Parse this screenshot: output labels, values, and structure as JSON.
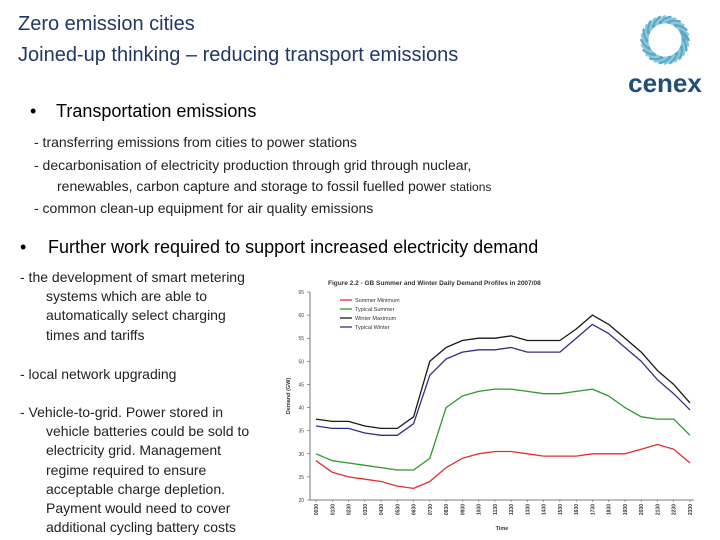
{
  "slide": {
    "title_line1": "Zero emission cities",
    "title_line2": "Joined-up thinking – reducing transport emissions",
    "logo_text": "cenex",
    "bullet1": {
      "label": "Transportation emissions",
      "sub1": "- transferring emissions from cities to power stations",
      "sub2a": "- decarbonisation of electricity production through grid through nuclear,",
      "sub2b": "renewables, carbon capture and storage to fossil fuelled power",
      "sub2c": "stations",
      "sub3": "- common clean-up equipment for air quality emissions"
    },
    "bullet2": {
      "label": "Further work required to support increased electricity demand",
      "p1": [
        "- the development of smart metering",
        "systems which are able to",
        "automatically select charging",
        "times and tariffs"
      ],
      "p2": [
        "- local network upgrading"
      ],
      "p3": [
        "- Vehicle-to-grid. Power stored in",
        "vehicle batteries could be sold to",
        "electricity grid.  Management",
        "regime required to ensure",
        "acceptable charge depletion.",
        "Payment would need to cover",
        "additional cycling battery costs"
      ]
    }
  },
  "chart_data": {
    "type": "line",
    "title": "Figure 2.2 - GB Summer and Winter Daily Demand Profiles in 2007/08",
    "xlabel": "Time",
    "ylabel": "Demand (GW)",
    "ylim": [
      20,
      65
    ],
    "yticks": [
      20,
      25,
      30,
      35,
      40,
      45,
      50,
      55,
      60,
      65
    ],
    "legend_position": "top-left",
    "x": [
      "00:30",
      "01:30",
      "02:30",
      "03:30",
      "04:30",
      "05:30",
      "06:30",
      "07:30",
      "08:30",
      "09:30",
      "10:30",
      "11:30",
      "12:30",
      "13:30",
      "14:30",
      "15:30",
      "16:30",
      "17:30",
      "18:30",
      "19:30",
      "20:30",
      "21:30",
      "22:30",
      "23:30"
    ],
    "xticks": [
      "0030",
      "0130",
      "0230",
      "0330",
      "0430",
      "0530",
      "0630",
      "0730",
      "0830",
      "0930",
      "1030",
      "1130",
      "1230",
      "1330",
      "1430",
      "1530",
      "1630",
      "1730",
      "1830",
      "1930",
      "2030",
      "2130",
      "2230",
      "2330"
    ],
    "series": [
      {
        "name": "Summer Minimum",
        "color": "#e03030",
        "values": [
          28.5,
          26,
          25,
          24.5,
          24,
          23,
          22.5,
          24,
          27,
          29,
          30,
          30.5,
          30.5,
          30,
          29.5,
          29.5,
          29.5,
          30,
          30,
          30,
          31,
          32,
          31,
          28
        ]
      },
      {
        "name": "Typical Summer",
        "color": "#2a9a2a",
        "values": [
          30,
          28.5,
          28,
          27.5,
          27,
          26.5,
          26.5,
          29,
          40,
          42.5,
          43.5,
          44,
          44,
          43.5,
          43,
          43,
          43.5,
          44,
          42.5,
          40,
          38,
          37.5,
          37.5,
          34
        ]
      },
      {
        "name": "Winter Maximum",
        "color": "#1a1a1a",
        "values": [
          37.5,
          37,
          37,
          36,
          35.5,
          35.5,
          38,
          50,
          53,
          54.5,
          55,
          55,
          55.5,
          54.5,
          54.5,
          54.5,
          57,
          60,
          58,
          55,
          52,
          48,
          45,
          41
        ]
      },
      {
        "name": "Typical Winter",
        "color": "#30308a",
        "values": [
          36,
          35.5,
          35.5,
          34.5,
          34,
          34,
          36.5,
          47,
          50.5,
          52,
          52.5,
          52.5,
          53,
          52,
          52,
          52,
          55,
          58,
          56,
          53,
          50,
          46,
          43,
          39.5
        ]
      }
    ]
  }
}
